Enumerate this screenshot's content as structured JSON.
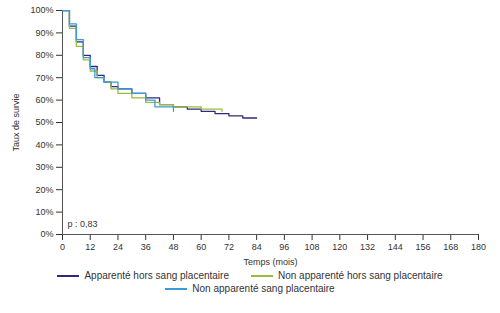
{
  "chart_data": {
    "type": "line",
    "x_label": "Temps (mois)",
    "y_label": "Taux de survie",
    "annotation": "p : 0,83",
    "xlim": [
      0,
      180
    ],
    "xticks": [
      0,
      12,
      24,
      36,
      48,
      60,
      72,
      84,
      96,
      108,
      120,
      132,
      144,
      156,
      168,
      180
    ],
    "ylim": [
      0,
      100
    ],
    "yticks": [
      {
        "value": 0,
        "label": "0%"
      },
      {
        "value": 10,
        "label": "10%"
      },
      {
        "value": 20,
        "label": "20%"
      },
      {
        "value": 30,
        "label": "30%"
      },
      {
        "value": 40,
        "label": "40%"
      },
      {
        "value": 50,
        "label": "50%"
      },
      {
        "value": 60,
        "label": "60%"
      },
      {
        "value": 70,
        "label": "70%"
      },
      {
        "value": 80,
        "label": "80%"
      },
      {
        "value": 90,
        "label": "90%"
      },
      {
        "value": 100,
        "label": "100%"
      }
    ],
    "grid": false,
    "legend": "bottom",
    "line_style": "step",
    "series": [
      {
        "name": "Apparenté hors sang placentaire",
        "color": "#2f2a7c",
        "x": [
          0,
          3,
          6,
          9,
          12,
          15,
          18,
          21,
          24,
          30,
          36,
          42,
          48,
          54,
          60,
          66,
          72,
          78,
          84
        ],
        "values": [
          100,
          93,
          86,
          80,
          75,
          71,
          68,
          66,
          65,
          63,
          61,
          58,
          57,
          56,
          55,
          54,
          53,
          52,
          52
        ]
      },
      {
        "name": "Non apparenté hors sang placentaire",
        "color": "#9bbb3b",
        "x": [
          0,
          3,
          6,
          9,
          12,
          15,
          18,
          21,
          24,
          30,
          36,
          42,
          48,
          54,
          60,
          66,
          69
        ],
        "values": [
          100,
          92,
          84,
          78,
          73,
          70,
          68,
          65,
          63,
          61,
          59,
          58,
          57,
          57,
          56,
          56,
          55
        ]
      },
      {
        "name": "Non apparenté sang placentaire",
        "color": "#3b9bd8",
        "x": [
          0,
          3,
          6,
          9,
          12,
          14,
          18,
          24,
          30,
          36,
          40,
          46,
          48
        ],
        "values": [
          100,
          94,
          87,
          79,
          74,
          70,
          68,
          65,
          63,
          60,
          57,
          57,
          55
        ]
      }
    ]
  }
}
